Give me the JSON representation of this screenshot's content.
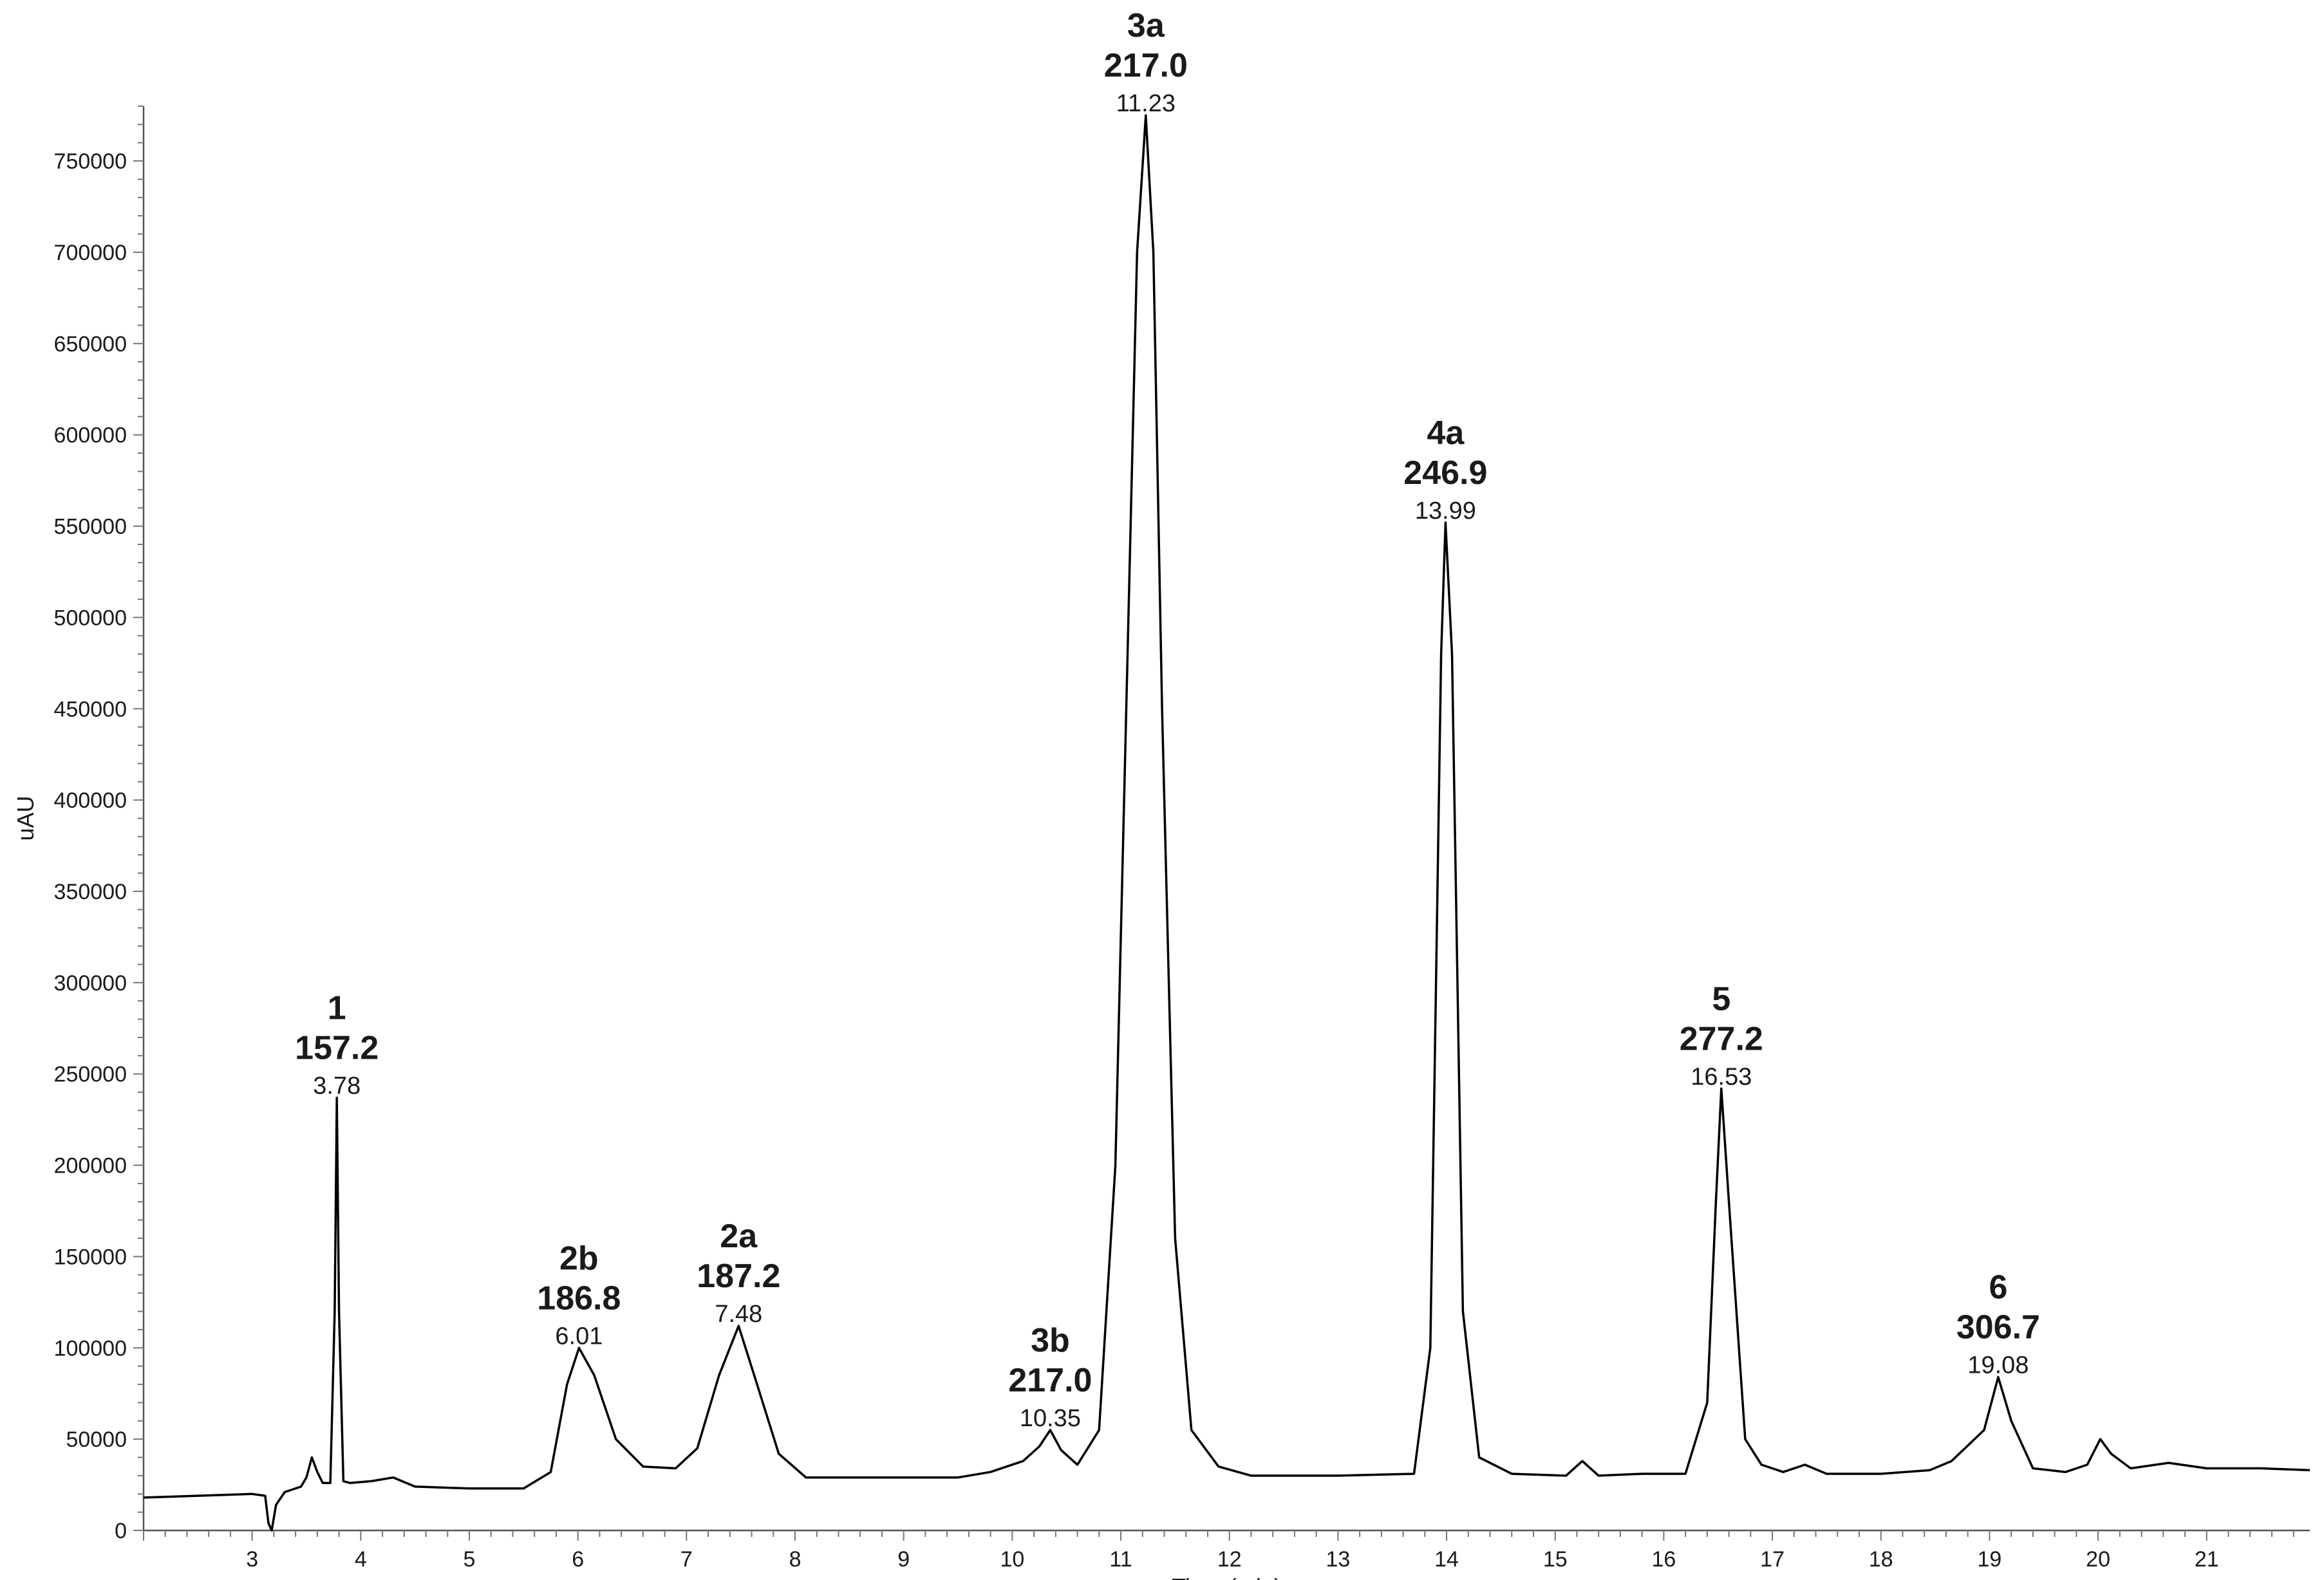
{
  "chart_data": {
    "type": "line",
    "title": "",
    "xlabel": "Time (min)",
    "ylabel": "uAU",
    "xlim": [
      2.0,
      21.95
    ],
    "ylim": [
      0,
      780000
    ],
    "x_ticks": [
      3,
      4,
      5,
      6,
      7,
      8,
      9,
      10,
      11,
      12,
      13,
      14,
      15,
      16,
      17,
      18,
      19,
      20,
      21
    ],
    "x_tick_labels": [
      "3",
      "4",
      "5",
      "6",
      "7",
      "8",
      "9",
      "10",
      "11",
      "12",
      "13",
      "14",
      "15",
      "16",
      "17",
      "18",
      "19",
      "20",
      "21"
    ],
    "y_ticks": [
      0,
      50000,
      100000,
      150000,
      200000,
      250000,
      300000,
      350000,
      400000,
      450000,
      500000,
      550000,
      600000,
      650000,
      700000,
      750000
    ],
    "y_tick_labels": [
      "0",
      "50000",
      "100000",
      "150000",
      "200000",
      "250000",
      "300000",
      "350000",
      "400000",
      "450000",
      "500000",
      "550000",
      "600000",
      "650000",
      "700000",
      "750000"
    ],
    "grid": false,
    "series": [
      {
        "color": "#000000",
        "x": [
          2.0,
          2.5,
          3.0,
          3.12,
          3.15,
          3.18,
          3.22,
          3.3,
          3.45,
          3.5,
          3.55,
          3.6,
          3.65,
          3.72,
          3.76,
          3.78,
          3.8,
          3.84,
          3.9,
          4.1,
          4.3,
          4.5,
          5.0,
          5.5,
          5.75,
          5.9,
          6.01,
          6.15,
          6.35,
          6.6,
          6.9,
          7.1,
          7.3,
          7.48,
          7.65,
          7.85,
          8.1,
          8.5,
          9.0,
          9.5,
          9.8,
          10.1,
          10.25,
          10.35,
          10.45,
          10.6,
          10.8,
          10.95,
          11.05,
          11.15,
          11.23,
          11.3,
          11.38,
          11.5,
          11.65,
          11.9,
          12.2,
          13.0,
          13.7,
          13.85,
          13.95,
          13.99,
          14.05,
          14.15,
          14.3,
          14.6,
          15.1,
          15.25,
          15.4,
          15.8,
          16.2,
          16.4,
          16.48,
          16.53,
          16.6,
          16.75,
          16.9,
          17.1,
          17.3,
          17.5,
          18.0,
          18.45,
          18.65,
          18.95,
          19.08,
          19.2,
          19.4,
          19.7,
          19.9,
          20.02,
          20.12,
          20.3,
          20.65,
          21.0,
          21.5,
          21.95
        ],
        "y": [
          18000,
          19000,
          20000,
          19000,
          4000,
          0,
          14000,
          21000,
          24000,
          29000,
          40000,
          32000,
          26000,
          26000,
          120000,
          237000,
          120000,
          27000,
          26000,
          27000,
          29000,
          24000,
          23000,
          23000,
          32000,
          80000,
          100000,
          85000,
          50000,
          35000,
          34000,
          45000,
          85000,
          112000,
          80000,
          42000,
          29000,
          29000,
          29000,
          29000,
          32000,
          38000,
          46000,
          55000,
          44000,
          36000,
          55000,
          200000,
          450000,
          700000,
          775000,
          700000,
          450000,
          160000,
          55000,
          35000,
          30000,
          30000,
          31000,
          100000,
          480000,
          552000,
          480000,
          120000,
          40000,
          31000,
          30000,
          38000,
          30000,
          31000,
          31000,
          70000,
          180000,
          242000,
          180000,
          50000,
          36000,
          32000,
          36000,
          31000,
          31000,
          33000,
          38000,
          55000,
          84000,
          60000,
          34000,
          32000,
          36000,
          50000,
          42000,
          34000,
          37000,
          34000,
          34000,
          33000
        ]
      }
    ],
    "peaks": [
      {
        "name": "1",
        "mz": "157.2",
        "rt": "3.78",
        "x": 3.78,
        "y": 237000
      },
      {
        "name": "2b",
        "mz": "186.8",
        "rt": "6.01",
        "x": 6.01,
        "y": 100000
      },
      {
        "name": "2a",
        "mz": "187.2",
        "rt": "7.48",
        "x": 7.48,
        "y": 112000
      },
      {
        "name": "3b",
        "mz": "217.0",
        "rt": "10.35",
        "x": 10.35,
        "y": 55000
      },
      {
        "name": "3a",
        "mz": "217.0",
        "rt": "11.23",
        "x": 11.23,
        "y": 775000
      },
      {
        "name": "4a",
        "mz": "246.9",
        "rt": "13.99",
        "x": 13.99,
        "y": 552000
      },
      {
        "name": "5",
        "mz": "277.2",
        "rt": "16.53",
        "x": 16.53,
        "y": 242000
      },
      {
        "name": "6",
        "mz": "306.7",
        "rt": "19.08",
        "x": 19.08,
        "y": 84000
      }
    ]
  }
}
